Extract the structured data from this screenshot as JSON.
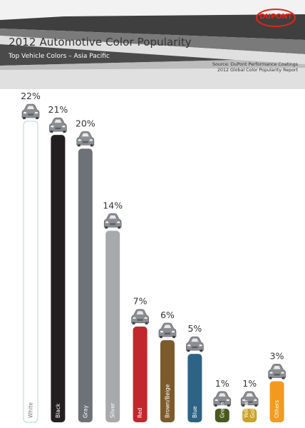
{
  "header": {
    "title": "2012 Automotive Color Popularity",
    "subtitle": "Top Vehicle Colors – Asia Pacific",
    "source": "Source: DuPont Performance Coatings 2012 Global Color Popularity Report",
    "logo": "DUPONT"
  },
  "chart_data": {
    "type": "bar",
    "title": "2012 Automotive Color Popularity",
    "subtitle": "Top Vehicle Colors – Asia Pacific",
    "categories": [
      "White",
      "Black",
      "Gray",
      "Silver",
      "Red",
      "Brown/Beige",
      "Blue",
      "Green",
      "Yellow/ Gold",
      "Others"
    ],
    "values": [
      22,
      21,
      20,
      14,
      7,
      6,
      5,
      1,
      1,
      3
    ],
    "labels": [
      "22%",
      "21%",
      "20%",
      "14%",
      "7%",
      "6%",
      "5%",
      "1%",
      "1%",
      "3%"
    ],
    "colors": [
      "#ffffff",
      "#231f20",
      "#6d7278",
      "#a7a9ac",
      "#c1272d",
      "#7c5a2a",
      "#2d6486",
      "#4a5a1f",
      "#c9a227",
      "#f39a1e"
    ],
    "ylim": [
      0,
      22
    ],
    "grid": false,
    "legend": "none"
  }
}
